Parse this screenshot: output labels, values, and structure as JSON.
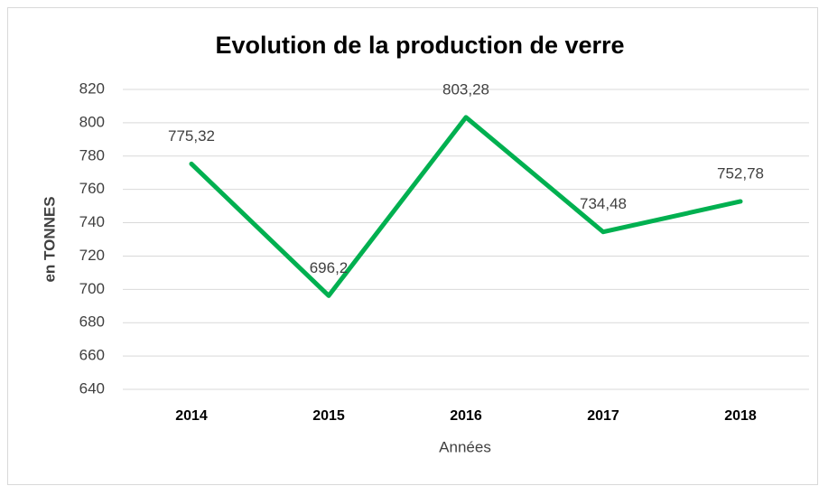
{
  "chart_data": {
    "type": "line",
    "title": "Evolution de la production de verre",
    "y_label": "en TONNES",
    "x_label": "Années",
    "categories": [
      "2014",
      "2015",
      "2016",
      "2017",
      "2018"
    ],
    "values": [
      775.32,
      696.2,
      803.28,
      734.48,
      752.78
    ],
    "value_labels": [
      "775,32",
      "696,2",
      "803,28",
      "734,48",
      "752,78"
    ],
    "color": "#00b050",
    "ylim": [
      640,
      820
    ],
    "yticks": [
      640,
      660,
      680,
      700,
      720,
      740,
      760,
      780,
      800,
      820
    ],
    "grid": true
  }
}
